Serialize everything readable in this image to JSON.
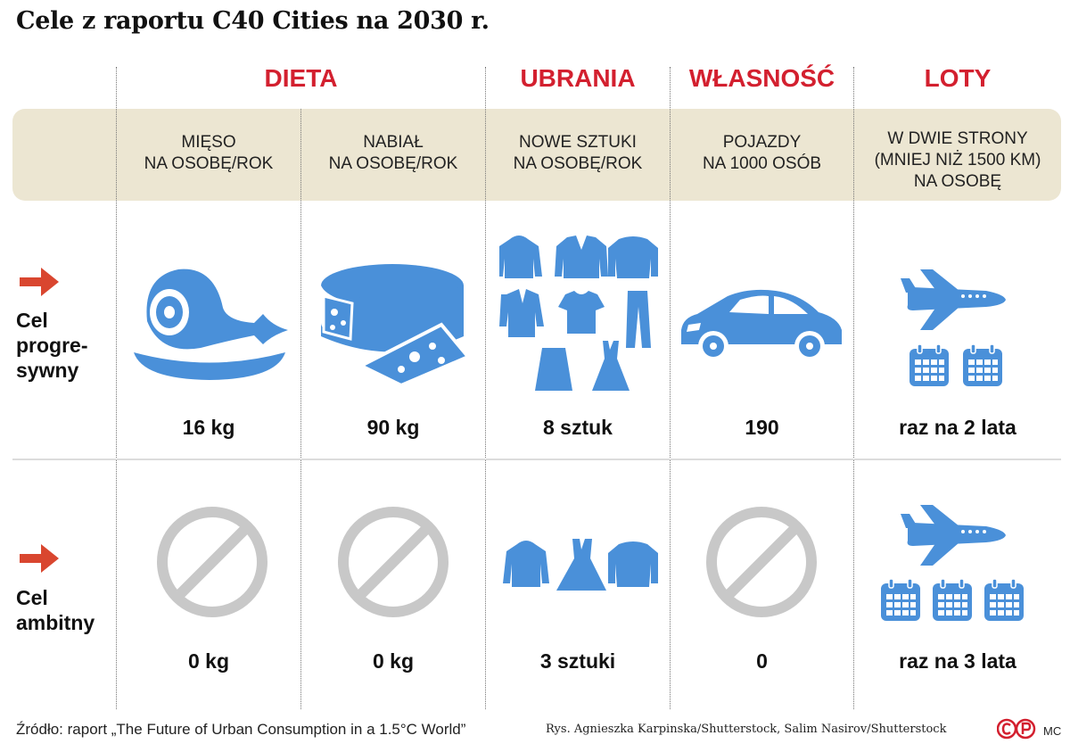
{
  "title": "Cele z raportu C40 Cities na 2030 r.",
  "colors": {
    "accent": "#d3202f",
    "icon": "#4a90d9",
    "band": "#ece6d2",
    "forbidden": "#c8c8c8"
  },
  "chart_data": {
    "type": "table",
    "categories": [
      {
        "label": "DIETA",
        "columns": [
          {
            "header": [
              "MIĘSO",
              "NA OSOBĘ/ROK"
            ],
            "progressive": "16 kg",
            "ambitious": "0 kg",
            "progressive_icon": "ham-icon",
            "ambitious_icon": "forbidden-icon"
          },
          {
            "header": [
              "NABIAŁ",
              "NA OSOBĘ/ROK"
            ],
            "progressive": "90 kg",
            "ambitious": "0 kg",
            "progressive_icon": "cheese-icon",
            "ambitious_icon": "forbidden-icon"
          }
        ]
      },
      {
        "label": "UBRANIA",
        "columns": [
          {
            "header": [
              "NOWE SZTUKI",
              "NA OSOBĘ/ROK"
            ],
            "progressive": "8 sztuk",
            "ambitious": "3 sztuki",
            "progressive_icon": "clothes-icon",
            "ambitious_icon": "clothes-icon"
          }
        ]
      },
      {
        "label": "WŁASNOŚĆ",
        "columns": [
          {
            "header": [
              "POJAZDY",
              "NA 1000 OSÓB"
            ],
            "progressive": "190",
            "ambitious": "0",
            "progressive_icon": "car-icon",
            "ambitious_icon": "forbidden-icon"
          }
        ]
      },
      {
        "label": "LOTY",
        "columns": [
          {
            "header": [
              "W DWIE STRONY",
              "(MNIEJ NIŻ 1500 KM)",
              "NA OSOBĘ"
            ],
            "progressive": "raz na 2 lata",
            "ambitious": "raz na 3 lata",
            "progressive_icon": "airplane-icon",
            "ambitious_icon": "airplane-icon"
          }
        ]
      }
    ],
    "rows": [
      {
        "label": [
          "Cel",
          "progre-",
          "sywny"
        ]
      },
      {
        "label": [
          "Cel",
          "ambitny"
        ]
      }
    ]
  },
  "footer": {
    "source": "Źródło: raport „The Future of Urban Consumption in a 1.5°C World”",
    "credit": "Rys. Agnieszka Karpinska/Shutterstock, Salim Nasirov/Shutterstock",
    "logo": "©P",
    "initials": "MC"
  }
}
